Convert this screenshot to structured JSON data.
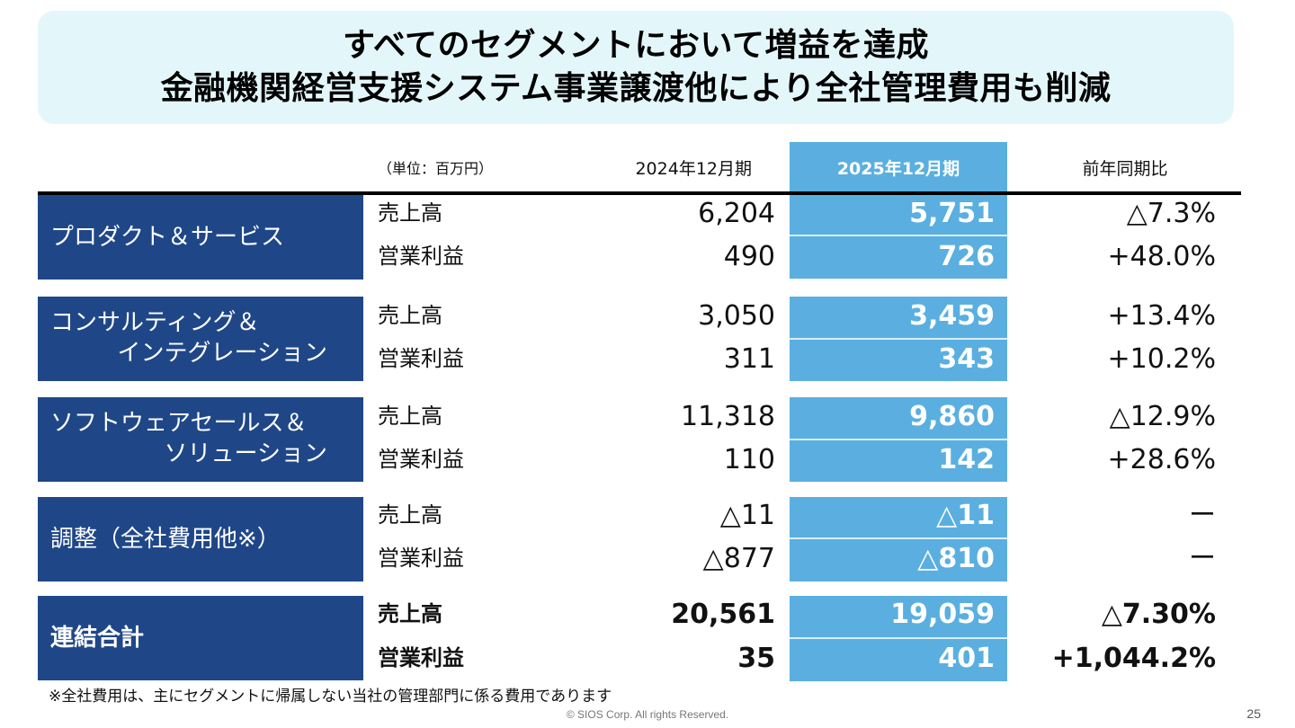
{
  "title": {
    "line1": "すべてのセグメントにおいて増益を達成",
    "line2": "金融機関経営支援システム事業譲渡他により全社管理費用も削減"
  },
  "table": {
    "unit": "（単位：百万円）",
    "headers": {
      "prev": "2024年12月期",
      "curr": "2025年12月期",
      "yoy": "前年同期比"
    },
    "segments": [
      {
        "name_lines": [
          "プロダクト＆サービス"
        ],
        "rows": [
          {
            "label": "売上高",
            "prev": "6,204",
            "curr": "5,751",
            "yoy": "△7.3%"
          },
          {
            "label": "営業利益",
            "prev": "490",
            "curr": "726",
            "yoy": "+48.0%"
          }
        ]
      },
      {
        "name_lines": [
          "コンサルティング＆",
          "インテグレーション"
        ],
        "rows": [
          {
            "label": "売上高",
            "prev": "3,050",
            "curr": "3,459",
            "yoy": "+13.4%"
          },
          {
            "label": "営業利益",
            "prev": "311",
            "curr": "343",
            "yoy": "+10.2%"
          }
        ]
      },
      {
        "name_lines": [
          "ソフトウェアセールス＆",
          "ソリューション"
        ],
        "rows": [
          {
            "label": "売上高",
            "prev": "11,318",
            "curr": "9,860",
            "yoy": "△12.9%"
          },
          {
            "label": "営業利益",
            "prev": "110",
            "curr": "142",
            "yoy": "+28.6%"
          }
        ]
      },
      {
        "name_lines": [
          "調整（全社費用他※）"
        ],
        "rows": [
          {
            "label": "売上高",
            "prev": "△11",
            "curr": "△11",
            "yoy": "ー"
          },
          {
            "label": "営業利益",
            "prev": "△877",
            "curr": "△810",
            "yoy": "ー"
          }
        ]
      },
      {
        "name_lines": [
          "連結合計"
        ],
        "rows": [
          {
            "label": "売上高",
            "prev": "20,561",
            "curr": "19,059",
            "yoy": "△7.30%"
          },
          {
            "label": "営業利益",
            "prev": "35",
            "curr": "401",
            "yoy": "+1,044.2%"
          }
        ]
      }
    ]
  },
  "footnote": "※全社費用は、主にセグメントに帰属しない当社の管理部門に係る費用であります",
  "copyright": "© SIOS Corp. All rights Reserved.",
  "page_number": "25",
  "colors": {
    "segment_bg": "#1f4788",
    "highlight_col": "#5aafe0",
    "banner_bg": "#e3f7fb"
  }
}
